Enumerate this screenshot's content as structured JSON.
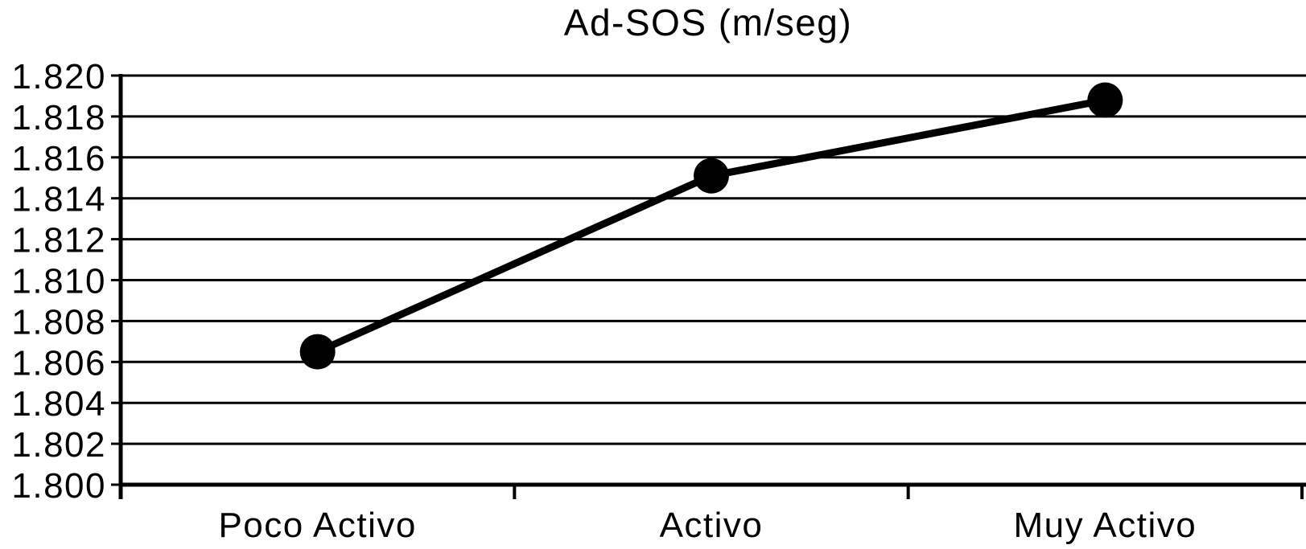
{
  "chart_data": {
    "type": "line",
    "title": "Ad-SOS (m/seg)",
    "categories": [
      "Poco Activo",
      "Activo",
      "Muy Activo"
    ],
    "series": [
      {
        "name": "Ad-SOS",
        "values": [
          1.8065,
          1.8151,
          1.8188
        ]
      }
    ],
    "ylim": [
      1.8,
      1.82
    ],
    "ytick_step": 0.002,
    "ytick_labels": [
      "1.820",
      "1.818",
      "1.816",
      "1.814",
      "1.812",
      "1.810",
      "1.808",
      "1.806",
      "1.804",
      "1.802",
      "1.800"
    ],
    "xlabel": "",
    "ylabel": "",
    "grid": true,
    "legend_position": "none",
    "marker": "circle",
    "line_color": "#000000",
    "marker_color": "#000000",
    "grid_color": "#000000",
    "axis_color": "#000000",
    "text_color": "#000000",
    "background_color": "#ffffff"
  }
}
